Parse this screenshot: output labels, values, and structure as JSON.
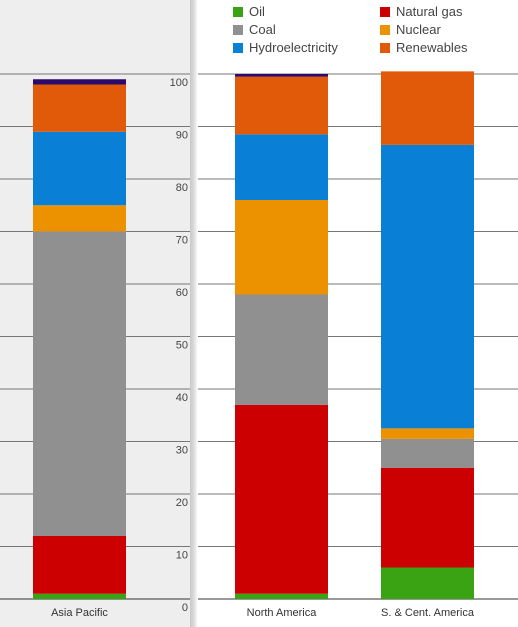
{
  "chart_data": {
    "type": "bar",
    "stacked": true,
    "categories": [
      "Asia Pacific",
      "North America",
      "S. & Cent. America"
    ],
    "yticks": [
      "0",
      "10",
      "20",
      "30",
      "40",
      "50",
      "60",
      "70",
      "80",
      "90",
      "100"
    ],
    "ylim": [
      0,
      100
    ],
    "legend_placement": "top",
    "grid": true,
    "series": [
      {
        "name": "Oil",
        "color": "#3aa314",
        "values": [
          1,
          1,
          6
        ]
      },
      {
        "name": "Natural gas",
        "color": "#cc0000",
        "values": [
          11,
          36,
          19
        ]
      },
      {
        "name": "Coal",
        "color": "#909090",
        "values": [
          58,
          21,
          5.5
        ]
      },
      {
        "name": "Nuclear",
        "color": "#ec9200",
        "values": [
          5,
          18,
          2
        ]
      },
      {
        "name": "Hydroelectricity",
        "color": "#0a7fd6",
        "values": [
          14,
          12.5,
          54
        ]
      },
      {
        "name": "Renewables",
        "color": "#e05a0a",
        "values": [
          9,
          11,
          14
        ]
      },
      {
        "name": "",
        "color": "#2c0a6b",
        "values": [
          1,
          0.5,
          0
        ]
      }
    ]
  }
}
